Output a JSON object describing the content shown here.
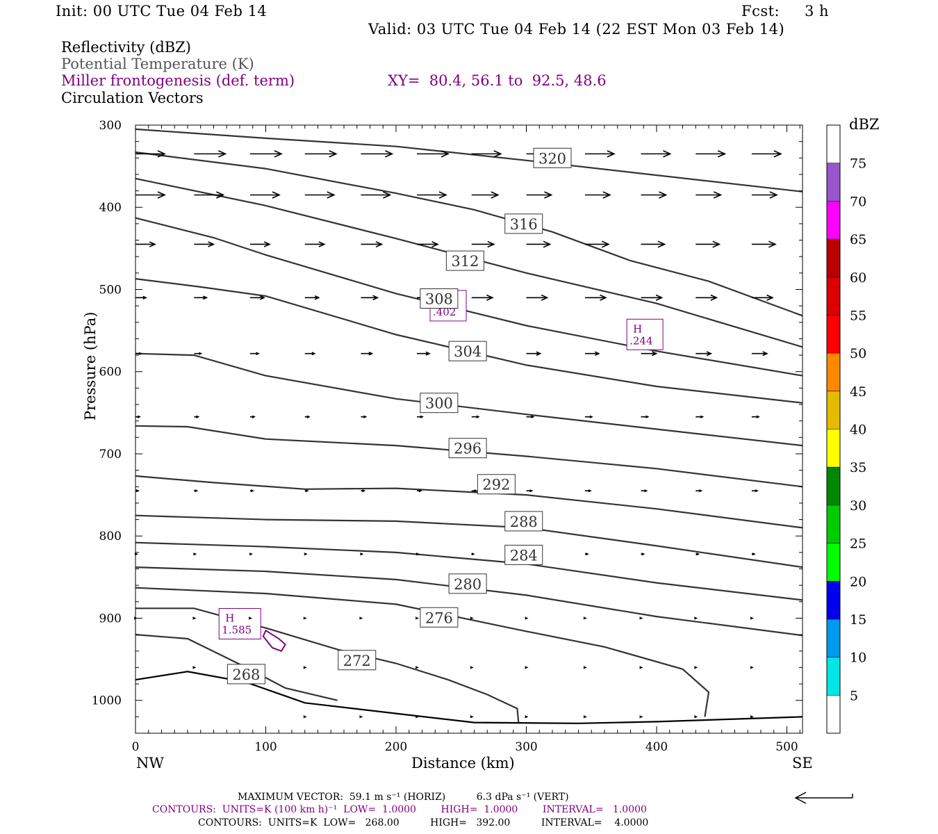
{
  "header": {
    "init": "Init: 00 UTC Tue 04 Feb 14",
    "fcst": "Fcst:     3 h",
    "valid": "Valid: 03 UTC Tue 04 Feb 14 (22 EST Mon 03 Feb 14)",
    "field1": "Reflectivity (dBZ)",
    "field2": "Potential Temperature (K)",
    "field3": "Miller frontogenesis (def. term)",
    "xy": "XY=  80.4, 56.1 to  92.5, 48.6",
    "field4": "Circulation Vectors"
  },
  "footer": {
    "max_vector": "MAXIMUM VECTOR:  59.1 m s⁻¹ (HORIZ)          6.3 dPa s⁻¹ (VERT)",
    "contours_fronto": "CONTOURS:  UNITS=K (100 km h)⁻¹  LOW=  1.0000        HIGH=  1.0000        INTERVAL=   1.0000",
    "contours_theta": "CONTOURS:  UNITS=K  LOW=   268.00          HIGH=   392.00          INTERVAL=    4.0000"
  },
  "colors": {
    "theta": "#333333",
    "fronto": "#800080",
    "vector": "#000000"
  },
  "chart_data": {
    "type": "cross-section",
    "xlabel": "Distance (km)",
    "ylabel": "Pressure (hPa)",
    "x_end_left": "NW",
    "x_end_right": "SE",
    "xlim": [
      0,
      512
    ],
    "ylim": [
      300,
      1040
    ],
    "y_scale": "pressure (inverted)",
    "x_ticks": [
      "0",
      "100",
      "200",
      "300",
      "400",
      "500"
    ],
    "x_tick_values": [
      0,
      100,
      200,
      300,
      400,
      500
    ],
    "y_ticks": [
      "300",
      "400",
      "500",
      "600",
      "700",
      "800",
      "900",
      "1000"
    ],
    "y_tick_values": [
      300,
      400,
      500,
      600,
      700,
      800,
      900,
      1000
    ],
    "colorbar": {
      "unit": "dBZ",
      "labels": [
        "5",
        "10",
        "15",
        "20",
        "25",
        "30",
        "35",
        "40",
        "45",
        "50",
        "55",
        "60",
        "65",
        "70",
        "75"
      ],
      "colors": [
        "#ffffff",
        "#00e5e5",
        "#0099ee",
        "#0000ee",
        "#00ff00",
        "#00cc00",
        "#008800",
        "#ffff00",
        "#e5bb00",
        "#ff8800",
        "#ff0000",
        "#dd0000",
        "#bb0000",
        "#ff00ff",
        "#9955cc",
        "#ffffff"
      ]
    },
    "theta_contours": [
      {
        "value": 320,
        "label": "320",
        "label_at": [
          320,
          340
        ],
        "points": [
          [
            0,
            305
          ],
          [
            100,
            316
          ],
          [
            200,
            326
          ],
          [
            300,
            343
          ],
          [
            400,
            361
          ],
          [
            512,
            381
          ]
        ]
      },
      {
        "value": 316,
        "label": "316",
        "label_at": [
          298,
          420
        ],
        "points": [
          [
            0,
            333
          ],
          [
            100,
            353
          ],
          [
            200,
            383
          ],
          [
            260,
            403
          ],
          [
            320,
            430
          ],
          [
            380,
            465
          ],
          [
            440,
            490
          ],
          [
            512,
            532
          ]
        ]
      },
      {
        "value": 312,
        "label": "312",
        "label_at": [
          253,
          465
        ],
        "points": [
          [
            0,
            365
          ],
          [
            100,
            398
          ],
          [
            200,
            438
          ],
          [
            300,
            480
          ],
          [
            400,
            517
          ],
          [
            512,
            570
          ]
        ]
      },
      {
        "value": 308,
        "label": "308",
        "label_at": [
          233,
          511
        ],
        "points": [
          [
            0,
            413
          ],
          [
            60,
            437
          ],
          [
            100,
            458
          ],
          [
            200,
            505
          ],
          [
            300,
            544
          ],
          [
            400,
            575
          ],
          [
            512,
            605
          ]
        ]
      },
      {
        "value": 304,
        "label": "304",
        "label_at": [
          255,
          575
        ],
        "points": [
          [
            0,
            487
          ],
          [
            50,
            497
          ],
          [
            100,
            508
          ],
          [
            200,
            555
          ],
          [
            300,
            592
          ],
          [
            400,
            618
          ],
          [
            512,
            638
          ]
        ]
      },
      {
        "value": 300,
        "label": "300",
        "label_at": [
          233,
          638
        ],
        "points": [
          [
            0,
            578
          ],
          [
            45,
            580
          ],
          [
            100,
            605
          ],
          [
            200,
            633
          ],
          [
            300,
            652
          ],
          [
            400,
            670
          ],
          [
            512,
            690
          ]
        ]
      },
      {
        "value": 296,
        "label": "296",
        "label_at": [
          255,
          693
        ],
        "points": [
          [
            0,
            666
          ],
          [
            40,
            667
          ],
          [
            100,
            682
          ],
          [
            200,
            690
          ],
          [
            300,
            703
          ],
          [
            400,
            718
          ],
          [
            512,
            740
          ]
        ]
      },
      {
        "value": 292,
        "label": "292",
        "label_at": [
          277,
          737
        ],
        "points": [
          [
            0,
            727
          ],
          [
            60,
            735
          ],
          [
            130,
            743
          ],
          [
            200,
            742
          ],
          [
            300,
            750
          ],
          [
            400,
            767
          ],
          [
            512,
            790
          ]
        ]
      },
      {
        "value": 288,
        "label": "288",
        "label_at": [
          298,
          782
        ],
        "points": [
          [
            0,
            775
          ],
          [
            100,
            780
          ],
          [
            200,
            782
          ],
          [
            300,
            790
          ],
          [
            400,
            812
          ],
          [
            512,
            838
          ]
        ]
      },
      {
        "value": 284,
        "label": "284",
        "label_at": [
          298,
          823
        ],
        "points": [
          [
            0,
            808
          ],
          [
            100,
            813
          ],
          [
            200,
            820
          ],
          [
            300,
            834
          ],
          [
            400,
            857
          ],
          [
            512,
            878
          ]
        ]
      },
      {
        "value": 280,
        "label": "280",
        "label_at": [
          255,
          858
        ],
        "points": [
          [
            0,
            838
          ],
          [
            100,
            843
          ],
          [
            200,
            853
          ],
          [
            300,
            872
          ],
          [
            400,
            898
          ],
          [
            512,
            921
          ]
        ]
      },
      {
        "value": 276,
        "label": "276",
        "label_at": [
          233,
          899
        ],
        "points": [
          [
            0,
            863
          ],
          [
            100,
            870
          ],
          [
            200,
            883
          ],
          [
            300,
            916
          ],
          [
            360,
            935
          ],
          [
            420,
            962
          ],
          [
            440,
            990
          ],
          [
            437,
            1020
          ]
        ]
      },
      {
        "value": 272,
        "label": "272",
        "label_at": [
          170,
          951
        ],
        "points": [
          [
            0,
            888
          ],
          [
            45,
            888
          ],
          [
            100,
            912
          ],
          [
            155,
            938
          ],
          [
            200,
            955
          ],
          [
            240,
            975
          ],
          [
            270,
            993
          ],
          [
            293,
            1010
          ],
          [
            294,
            1027
          ]
        ]
      },
      {
        "value": 268,
        "label": "268",
        "label_at": [
          85,
          968
        ],
        "points": [
          [
            0,
            920
          ],
          [
            40,
            925
          ],
          [
            85,
            960
          ],
          [
            115,
            985
          ],
          [
            155,
            1000
          ]
        ]
      }
    ],
    "ground": [
      [
        0,
        975
      ],
      [
        40,
        965
      ],
      [
        85,
        978
      ],
      [
        130,
        1003
      ],
      [
        200,
        1016
      ],
      [
        260,
        1027
      ],
      [
        340,
        1028
      ],
      [
        400,
        1026
      ],
      [
        512,
        1020
      ]
    ],
    "fronto_maxima": [
      {
        "label": "H",
        "value": "1.585",
        "at": [
          70,
          922
        ]
      },
      {
        "label": "H",
        "value": ".402",
        "at": [
          232,
          535
        ]
      },
      {
        "label": "H",
        "value": ".244",
        "at": [
          383,
          570
        ]
      }
    ],
    "fronto_contour": [
      [
        100,
        915
      ],
      [
        110,
        925
      ],
      [
        115,
        932
      ],
      [
        112,
        940
      ],
      [
        105,
        936
      ],
      [
        98,
        922
      ]
    ],
    "vector_levels": [
      {
        "p": 335,
        "vectors": [
          [
            0,
            42
          ],
          [
            45,
            45
          ],
          [
            88,
            45
          ],
          [
            130,
            45
          ],
          [
            173,
            45
          ],
          [
            216,
            45
          ],
          [
            258,
            42
          ],
          [
            300,
            42
          ],
          [
            345,
            42
          ],
          [
            388,
            42
          ],
          [
            430,
            42
          ],
          [
            473,
            42
          ]
        ]
      },
      {
        "p": 385,
        "vectors": [
          [
            0,
            42
          ],
          [
            45,
            42
          ],
          [
            88,
            42
          ],
          [
            130,
            42
          ],
          [
            173,
            42
          ],
          [
            216,
            42
          ],
          [
            258,
            38
          ],
          [
            300,
            36
          ],
          [
            345,
            36
          ],
          [
            388,
            36
          ],
          [
            430,
            36
          ],
          [
            473,
            36
          ]
        ]
      },
      {
        "p": 445,
        "vectors": [
          [
            0,
            28
          ],
          [
            45,
            28
          ],
          [
            88,
            28
          ],
          [
            130,
            28
          ],
          [
            173,
            30
          ],
          [
            216,
            30
          ],
          [
            258,
            32
          ],
          [
            300,
            34
          ],
          [
            345,
            34
          ],
          [
            388,
            34
          ],
          [
            430,
            34
          ],
          [
            473,
            34
          ]
        ]
      },
      {
        "p": 510,
        "vectors": [
          [
            0,
            15
          ],
          [
            45,
            18
          ],
          [
            88,
            20
          ],
          [
            130,
            20
          ],
          [
            173,
            24
          ],
          [
            216,
            28
          ],
          [
            258,
            30
          ],
          [
            300,
            30
          ],
          [
            345,
            30
          ],
          [
            388,
            30
          ],
          [
            430,
            30
          ],
          [
            473,
            30
          ]
        ]
      },
      {
        "p": 578,
        "vectors": [
          [
            0,
            8
          ],
          [
            45,
            10
          ],
          [
            88,
            12
          ],
          [
            130,
            14
          ],
          [
            173,
            16
          ],
          [
            216,
            18
          ],
          [
            258,
            18
          ],
          [
            300,
            20
          ],
          [
            345,
            20
          ],
          [
            388,
            22
          ],
          [
            430,
            22
          ],
          [
            473,
            22
          ]
        ]
      },
      {
        "p": 655,
        "vectors": [
          [
            0,
            6
          ],
          [
            45,
            6
          ],
          [
            88,
            6
          ],
          [
            130,
            6
          ],
          [
            173,
            7
          ],
          [
            216,
            8
          ],
          [
            258,
            10
          ],
          [
            300,
            10
          ],
          [
            345,
            10
          ],
          [
            388,
            10
          ],
          [
            430,
            10
          ],
          [
            473,
            10
          ]
        ]
      },
      {
        "p": 745,
        "vectors": [
          [
            0,
            4
          ],
          [
            45,
            4
          ],
          [
            88,
            4
          ],
          [
            130,
            4
          ],
          [
            173,
            5
          ],
          [
            216,
            6
          ],
          [
            258,
            7
          ],
          [
            300,
            8
          ],
          [
            345,
            8
          ],
          [
            388,
            8
          ],
          [
            430,
            8
          ],
          [
            473,
            8
          ]
        ]
      },
      {
        "p": 822,
        "vectors": [
          [
            0,
            2
          ],
          [
            45,
            2
          ],
          [
            88,
            2
          ],
          [
            130,
            2
          ],
          [
            173,
            2
          ],
          [
            216,
            2
          ],
          [
            258,
            3
          ],
          [
            300,
            4
          ],
          [
            345,
            4
          ],
          [
            388,
            4
          ],
          [
            430,
            4
          ],
          [
            473,
            4
          ]
        ]
      },
      {
        "p": 900,
        "vectors": [
          [
            0,
            1
          ],
          [
            45,
            1
          ],
          [
            88,
            1
          ],
          [
            130,
            1
          ],
          [
            173,
            1
          ],
          [
            216,
            1
          ],
          [
            258,
            1
          ],
          [
            300,
            1
          ],
          [
            345,
            1
          ],
          [
            388,
            1
          ],
          [
            430,
            1
          ],
          [
            473,
            1
          ]
        ]
      },
      {
        "p": 960,
        "vectors": [
          [
            45,
            1
          ],
          [
            88,
            1
          ],
          [
            130,
            1
          ],
          [
            173,
            1
          ],
          [
            216,
            1
          ],
          [
            258,
            1
          ],
          [
            300,
            1
          ],
          [
            345,
            1
          ],
          [
            388,
            1
          ],
          [
            430,
            1
          ],
          [
            473,
            1
          ]
        ]
      },
      {
        "p": 1020,
        "vectors": [
          [
            130,
            1
          ],
          [
            173,
            1
          ],
          [
            216,
            1
          ],
          [
            258,
            1
          ],
          [
            300,
            1
          ],
          [
            345,
            1
          ],
          [
            388,
            1
          ],
          [
            430,
            1
          ],
          [
            473,
            1
          ]
        ]
      }
    ]
  }
}
